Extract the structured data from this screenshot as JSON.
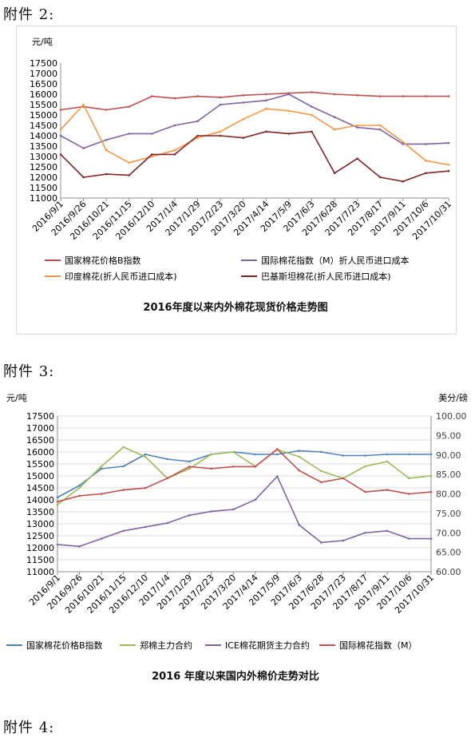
{
  "page": {
    "attachment2_label": "附件 2:",
    "attachment3_label": "附件 3:",
    "attachment4_label": "附件 4:"
  },
  "chart_data": [
    {
      "type": "line",
      "title": "2016年度以来内外棉花现货价格走势图",
      "ylabel": "元/吨",
      "ylim": [
        11000,
        17500
      ],
      "yticks": [
        "11000",
        "11500",
        "12000",
        "12500",
        "13000",
        "13500",
        "14000",
        "14500",
        "15000",
        "15500",
        "16000",
        "16500",
        "17000",
        "17500"
      ],
      "categories": [
        "2016/9/1",
        "2016/9/26",
        "2016/10/21",
        "2016/11/15",
        "2016/12/10",
        "2017/1/4",
        "2017/1/29",
        "2017/2/23",
        "2017/3/20",
        "2017/4/14",
        "2017/5/9",
        "2017/6/3",
        "2017/6/28",
        "2017/7/23",
        "2017/8/17",
        "2017/9/11",
        "2017/10/6",
        "2017/10/31"
      ],
      "grid": false,
      "legend_position": "bottom",
      "series": [
        {
          "name": "国家棉花价格B指数",
          "color": "#c0504d",
          "values": [
            15250,
            15400,
            15250,
            15400,
            15900,
            15800,
            15900,
            15850,
            15950,
            16000,
            16050,
            16100,
            16000,
            15950,
            15900,
            15900,
            15900,
            15900
          ]
        },
        {
          "name": "国际棉花指数（M）折人民币进口成本",
          "color": "#8064a2",
          "values": [
            14000,
            13400,
            13800,
            14100,
            14100,
            14500,
            14700,
            15500,
            15600,
            15700,
            16000,
            15400,
            14900,
            14400,
            14300,
            13600,
            13600,
            13650
          ]
        },
        {
          "name": "印度棉花(折人民币进口成本)",
          "color": "#f79646",
          "values": [
            14300,
            15500,
            13300,
            12700,
            13000,
            13300,
            13900,
            14200,
            14800,
            15300,
            15200,
            15000,
            14300,
            14500,
            14500,
            13700,
            12800,
            12600
          ]
        },
        {
          "name": "巴基斯坦棉花(折人民币进口成本)",
          "color": "#7f2626",
          "values": [
            13100,
            12000,
            12150,
            12100,
            13100,
            13100,
            14000,
            14000,
            13900,
            14200,
            14100,
            14200,
            12200,
            12900,
            12000,
            11800,
            12200,
            12300
          ]
        }
      ]
    },
    {
      "type": "line",
      "title": "2016 年度以来国内外棉价走势对比",
      "ylabel": "元/吨",
      "ylabel_right": "美分/磅",
      "ylim": [
        11000,
        17500
      ],
      "ylim_right": [
        60,
        100
      ],
      "yticks": [
        "11000",
        "11500",
        "12000",
        "12500",
        "13000",
        "13500",
        "14000",
        "14500",
        "15000",
        "15500",
        "16000",
        "16500",
        "17000",
        "17500"
      ],
      "yticks_right": [
        "60.00",
        "65.00",
        "70.00",
        "75.00",
        "80.00",
        "85.00",
        "90.00",
        "95.00",
        "100.00"
      ],
      "categories": [
        "2016/9/1",
        "2016/9/26",
        "2016/10/21",
        "2016/11/15",
        "2016/12/10",
        "2017/1/4",
        "2017/1/29",
        "2017/2/23",
        "2017/3/20",
        "2017/4/14",
        "2017/5/9",
        "2017/6/3",
        "2017/6/28",
        "2017/7/23",
        "2017/8/17",
        "2017/9/11",
        "2017/10/6",
        "2017/10/31"
      ],
      "grid": true,
      "legend_position": "bottom",
      "series": [
        {
          "name": "国家棉花价格B指数",
          "axis": "left",
          "color": "#4f81bd",
          "values": [
            14100,
            14600,
            15300,
            15400,
            15900,
            15700,
            15600,
            15900,
            16000,
            15900,
            15900,
            16050,
            16000,
            15850,
            15850,
            15900,
            15900,
            15900
          ]
        },
        {
          "name": "郑棉主力合约",
          "axis": "left",
          "color": "#9bbb59",
          "values": [
            13800,
            14500,
            15400,
            16200,
            15800,
            14900,
            15300,
            15900,
            16000,
            15400,
            16100,
            15800,
            15200,
            14900,
            15400,
            15600,
            14900,
            15000
          ]
        },
        {
          "name": "ICE棉花期货主力合约",
          "axis": "right",
          "color": "#8064a2",
          "values": [
            67.0,
            66.5,
            68.5,
            70.5,
            71.5,
            72.5,
            74.5,
            75.5,
            76.0,
            78.5,
            84.5,
            72.0,
            67.5,
            68.0,
            70.0,
            70.5,
            68.5,
            68.5
          ]
        },
        {
          "name": "国际棉花指数（M）",
          "axis": "right",
          "color": "#c0504d",
          "values": [
            78.0,
            79.5,
            80.0,
            81.0,
            81.5,
            84.0,
            87.0,
            86.5,
            87.0,
            87.0,
            91.5,
            86.0,
            83.0,
            84.0,
            80.5,
            81.0,
            80.0,
            80.5
          ]
        }
      ]
    }
  ]
}
